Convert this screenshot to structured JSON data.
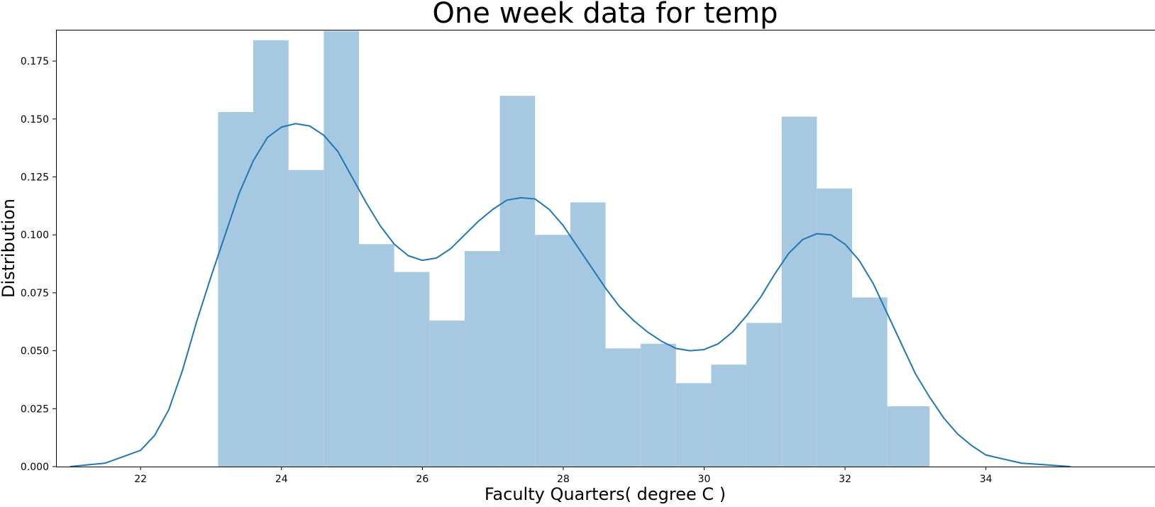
{
  "chart_data": {
    "type": "bar",
    "title": "One week data for temp",
    "xlabel": "Faculty Quarters( degree C )",
    "ylabel": "Distribution",
    "xlim": [
      20.8,
      36.4
    ],
    "ylim": [
      0,
      0.1885
    ],
    "xticks": [
      22,
      24,
      26,
      28,
      30,
      32,
      34
    ],
    "yticks": [
      0.0,
      0.025,
      0.05,
      0.075,
      0.1,
      0.125,
      0.15,
      0.175
    ],
    "grid": false,
    "bar_color": "#a6c8e1",
    "line_color": "#1f77b4",
    "histogram": {
      "bin_edges": [
        23.1,
        23.6,
        24.1,
        24.6,
        25.1,
        25.6,
        26.1,
        26.6,
        27.1,
        27.6,
        28.1,
        28.6,
        29.1,
        29.6,
        30.1,
        30.6,
        31.1,
        31.6,
        32.1,
        32.6,
        33.2
      ],
      "values": [
        0.153,
        0.184,
        0.128,
        0.188,
        0.096,
        0.084,
        0.063,
        0.093,
        0.16,
        0.1,
        0.114,
        0.051,
        0.053,
        0.036,
        0.044,
        0.062,
        0.151,
        0.12,
        0.073,
        0.026
      ]
    },
    "kde": {
      "x": [
        21.0,
        21.5,
        22.0,
        22.2,
        22.4,
        22.6,
        22.8,
        23.0,
        23.2,
        23.4,
        23.6,
        23.8,
        24.0,
        24.2,
        24.4,
        24.6,
        24.8,
        25.0,
        25.2,
        25.4,
        25.6,
        25.8,
        26.0,
        26.2,
        26.4,
        26.6,
        26.8,
        27.0,
        27.2,
        27.4,
        27.6,
        27.8,
        28.0,
        28.2,
        28.4,
        28.6,
        28.8,
        29.0,
        29.2,
        29.4,
        29.6,
        29.8,
        30.0,
        30.2,
        30.4,
        30.6,
        30.8,
        31.0,
        31.2,
        31.4,
        31.6,
        31.8,
        32.0,
        32.2,
        32.4,
        32.6,
        32.8,
        33.0,
        33.2,
        33.4,
        33.6,
        33.8,
        34.0,
        34.5,
        35.2
      ],
      "y": [
        0.0,
        0.0015,
        0.007,
        0.0135,
        0.0245,
        0.042,
        0.063,
        0.082,
        0.1,
        0.118,
        0.132,
        0.142,
        0.1465,
        0.148,
        0.147,
        0.143,
        0.136,
        0.125,
        0.114,
        0.104,
        0.096,
        0.091,
        0.089,
        0.09,
        0.094,
        0.1,
        0.106,
        0.111,
        0.115,
        0.116,
        0.1155,
        0.111,
        0.104,
        0.095,
        0.086,
        0.077,
        0.069,
        0.063,
        0.058,
        0.054,
        0.051,
        0.05,
        0.0505,
        0.053,
        0.058,
        0.065,
        0.073,
        0.083,
        0.092,
        0.098,
        0.1005,
        0.1,
        0.096,
        0.089,
        0.079,
        0.066,
        0.053,
        0.04,
        0.03,
        0.021,
        0.014,
        0.009,
        0.005,
        0.0015,
        0.0
      ]
    }
  }
}
